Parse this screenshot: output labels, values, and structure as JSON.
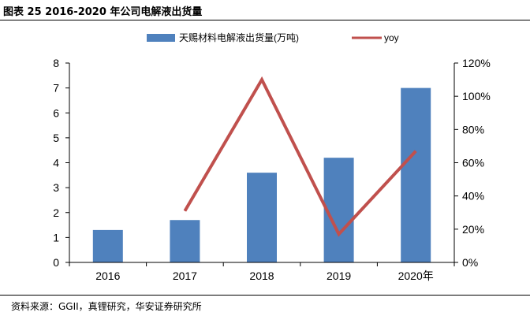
{
  "figure_title": "图表 25 2016-2020 年公司电解液出货量",
  "source": "资料来源：GGII，真锂研究，华安证券研究所",
  "colors": {
    "bar": "#4f81bd",
    "line": "#c0504d",
    "axis": "#000000"
  },
  "chart_data": {
    "type": "bar+line",
    "title": "",
    "categories": [
      "2016",
      "2017",
      "2018",
      "2019",
      "2020年"
    ],
    "series": [
      {
        "name": "天赐材料电解液出货量(万吨)",
        "type": "bar",
        "axis": "left",
        "values": [
          1.3,
          1.7,
          3.6,
          4.2,
          7.0
        ]
      },
      {
        "name": "yoy",
        "type": "line",
        "axis": "right",
        "values": [
          null,
          31,
          110,
          17,
          67
        ]
      }
    ],
    "y_left": {
      "min": 0,
      "max": 8,
      "ticks": [
        0,
        1,
        2,
        3,
        4,
        5,
        6,
        7,
        8
      ]
    },
    "y_right": {
      "min": 0,
      "max": 120,
      "ticks": [
        "0%",
        "20%",
        "40%",
        "60%",
        "80%",
        "100%",
        "120%"
      ]
    },
    "legend_position": "top",
    "grid": false
  }
}
